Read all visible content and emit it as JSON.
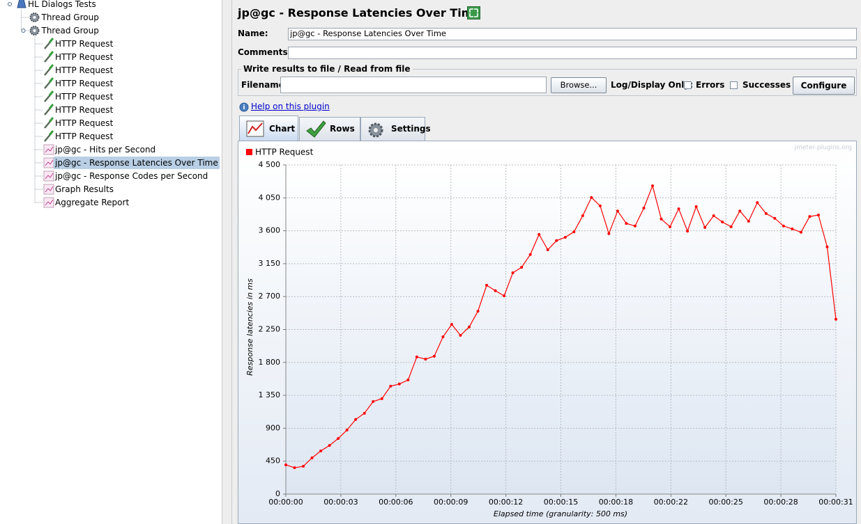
{
  "tree": {
    "label": "HL Dialogs Tests",
    "children": [
      {
        "label": "Thread Group"
      },
      {
        "label": "Thread Group",
        "children": [
          {
            "label": "HTTP Request"
          },
          {
            "label": "HTTP Request"
          },
          {
            "label": "HTTP Request"
          },
          {
            "label": "HTTP Request"
          },
          {
            "label": "HTTP Request"
          },
          {
            "label": "HTTP Request"
          },
          {
            "label": "HTTP Request"
          },
          {
            "label": "HTTP Request"
          },
          {
            "label": "jp@gc - Hits per Second"
          },
          {
            "label": "jp@gc - Response Latencies Over Time",
            "selected": true
          },
          {
            "label": "jp@gc - Response Codes per Second"
          },
          {
            "label": "Graph Results"
          },
          {
            "label": "Aggregate Report"
          }
        ]
      }
    ]
  },
  "panel": {
    "title": "jp@gc - Response Latencies Over Time",
    "name_label": "Name:",
    "name_value": "jp@gc - Response Latencies Over Time",
    "comments_label": "Comments:",
    "file_group": "Write results to file / Read from file",
    "filename_label": "Filename",
    "browse": "Browse...",
    "log_display": "Log/Display Only:",
    "errors": "Errors",
    "successes": "Successes",
    "configure": "Configure",
    "help": "Help on this plugin",
    "tabs": [
      "Chart",
      "Rows",
      "Settings"
    ]
  },
  "chart_data": {
    "type": "line",
    "watermark": "jmeter-plugins.org",
    "x_label": "Elapsed time (granularity: 500 ms)",
    "y_label": "Response latencies in ms",
    "grid": true,
    "x": [
      0,
      0.5,
      1,
      1.5,
      2,
      2.5,
      3,
      3.5,
      4,
      4.5,
      5,
      5.5,
      6,
      6.5,
      7,
      7.5,
      8,
      8.5,
      9,
      9.5,
      10,
      10.5,
      11,
      11.5,
      12,
      12.5,
      13,
      13.5,
      14,
      14.5,
      15,
      15.5,
      16,
      16.5,
      17,
      17.5,
      18,
      18.5,
      19,
      19.5,
      20,
      20.5,
      21,
      21.5,
      22,
      22.5,
      23,
      23.5,
      24,
      24.5,
      25,
      25.5,
      26,
      26.5,
      27,
      27.5,
      28,
      28.5,
      29,
      29.5,
      30,
      30.5,
      31,
      31.5
    ],
    "series": [
      {
        "name": "HTTP Request",
        "color": "#ff0000",
        "values": [
          400,
          360,
          380,
          495,
          590,
          665,
          760,
          875,
          1020,
          1105,
          1265,
          1305,
          1475,
          1505,
          1560,
          1875,
          1845,
          1885,
          2150,
          2320,
          2170,
          2285,
          2500,
          2855,
          2780,
          2710,
          3025,
          3100,
          3275,
          3550,
          3340,
          3465,
          3510,
          3585,
          3805,
          4055,
          3940,
          3560,
          3870,
          3700,
          3665,
          3910,
          4215,
          3760,
          3655,
          3900,
          3595,
          3930,
          3645,
          3805,
          3720,
          3655,
          3870,
          3730,
          3985,
          3835,
          3770,
          3665,
          3625,
          3580,
          3795,
          3815,
          3380,
          2390
        ]
      }
    ],
    "xlim": [
      0,
      31.5
    ],
    "xticks": [
      {
        "value": 0,
        "label": "00:00:00"
      },
      {
        "value": 3.15,
        "label": "00:00:03"
      },
      {
        "value": 6.3,
        "label": "00:00:06"
      },
      {
        "value": 9.45,
        "label": "00:00:09"
      },
      {
        "value": 12.6,
        "label": "00:00:12"
      },
      {
        "value": 15.75,
        "label": "00:00:15"
      },
      {
        "value": 18.9,
        "label": "00:00:18"
      },
      {
        "value": 22.05,
        "label": "00:00:22"
      },
      {
        "value": 25.2,
        "label": "00:00:25"
      },
      {
        "value": 28.35,
        "label": "00:00:28"
      },
      {
        "value": 31.5,
        "label": "00:00:31"
      }
    ],
    "ylim": [
      0,
      4500
    ],
    "yticks": [
      0,
      450,
      900,
      {
        "value": 1350,
        "label": "1 350"
      },
      {
        "value": 1800,
        "label": "1 800"
      },
      {
        "value": 2250,
        "label": "2 250"
      },
      {
        "value": 2700,
        "label": "2 700"
      },
      {
        "value": 3150,
        "label": "3 150"
      },
      {
        "value": 3600,
        "label": "3 600"
      },
      {
        "value": 4050,
        "label": "4 050"
      },
      {
        "value": 4500,
        "label": "4 500"
      }
    ]
  }
}
